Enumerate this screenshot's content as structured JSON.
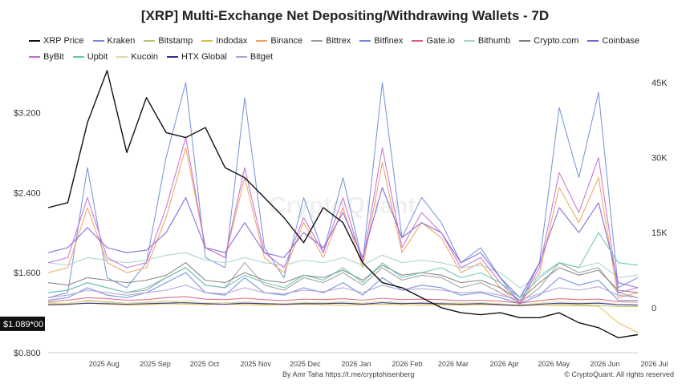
{
  "chart_data": {
    "type": "line",
    "title": "[XRP] Multi-Exchange Net Depositing/Withdrawing Wallets - 7D",
    "x_ticks": [
      "2025 Aug",
      "2025 Sep",
      "2025 Oct",
      "2025 Nov",
      "2025 Dec",
      "2026 Jan",
      "2026 Feb",
      "2026 Mar",
      "2026 Apr",
      "2026 May",
      "2026 Jun",
      "2026 Jul"
    ],
    "x_range": [
      "2025-07-12",
      "2026-07-05"
    ],
    "y_left": {
      "ticks": [
        "$3.200",
        "$2.400",
        "$1.600",
        "$0.800"
      ],
      "range": [
        0.8,
        3.7
      ]
    },
    "y_right": {
      "ticks": [
        "45K",
        "30K",
        "15K",
        "0"
      ],
      "range": [
        -9000,
        49000
      ]
    },
    "current_price_label": "$1.089*00",
    "grid": false,
    "legend_position": "top",
    "series": [
      {
        "name": "XRP Price",
        "color": "#111111",
        "axis": "left",
        "values": [
          2.25,
          2.3,
          3.1,
          3.62,
          2.8,
          3.35,
          3.0,
          2.95,
          3.05,
          2.65,
          2.55,
          2.35,
          2.15,
          1.9,
          2.25,
          2.1,
          1.7,
          1.5,
          1.45,
          1.35,
          1.25,
          1.2,
          1.18,
          1.2,
          1.15,
          1.15,
          1.2,
          1.1,
          1.05,
          0.95,
          0.98
        ]
      },
      {
        "name": "Kraken",
        "color": "#6f8fd6",
        "axis": "right",
        "values": [
          2000,
          3000,
          28000,
          6000,
          4000,
          9000,
          30000,
          45000,
          10000,
          8000,
          42000,
          12000,
          6000,
          22000,
          11000,
          26000,
          9000,
          45000,
          14000,
          22000,
          17000,
          9000,
          12000,
          6000,
          1000,
          9000,
          40000,
          26000,
          43000,
          4000,
          6000
        ]
      },
      {
        "name": "Bitstamp",
        "color": "#b7c46a",
        "axis": "right",
        "values": [
          1000,
          800,
          1500,
          1200,
          900,
          1100,
          1300,
          900,
          800,
          1000,
          900,
          700,
          800,
          900,
          1000,
          900,
          800,
          700,
          900,
          800,
          700,
          800,
          900,
          700,
          600,
          800,
          700,
          600,
          500,
          200,
          200
        ]
      },
      {
        "name": "Indodax",
        "color": "#e7b84a",
        "axis": "right",
        "values": [
          500,
          600,
          900,
          700,
          500,
          600,
          800,
          700,
          600,
          700,
          600,
          500,
          600,
          700,
          600,
          500,
          600,
          700,
          600,
          500,
          600,
          500,
          600,
          500,
          400,
          500,
          400,
          400,
          300,
          -3000,
          -5000
        ]
      },
      {
        "name": "Binance",
        "color": "#f0a05a",
        "axis": "right",
        "values": [
          7000,
          8000,
          20000,
          9000,
          7000,
          8000,
          18000,
          32000,
          12000,
          10000,
          26000,
          10000,
          7000,
          17000,
          10000,
          20000,
          8000,
          29000,
          11000,
          17000,
          14000,
          7000,
          9000,
          4000,
          600,
          7000,
          24000,
          17000,
          26000,
          2000,
          3000
        ]
      },
      {
        "name": "Bittrex",
        "color": "#9a9a9a",
        "axis": "right",
        "values": [
          3000,
          3500,
          5000,
          4000,
          3000,
          3500,
          6000,
          8000,
          4500,
          4000,
          9000,
          4500,
          3500,
          6000,
          5000,
          7000,
          4500,
          8000,
          5500,
          6500,
          6000,
          4000,
          5000,
          3000,
          1000,
          4000,
          9000,
          7000,
          8000,
          3000,
          2000
        ]
      },
      {
        "name": "Bitfinex",
        "color": "#6a8ad8",
        "axis": "right",
        "values": [
          1500,
          2000,
          4000,
          2500,
          2000,
          3000,
          5000,
          7000,
          3000,
          2500,
          6000,
          3000,
          2500,
          4000,
          3000,
          5000,
          2500,
          6000,
          3500,
          4500,
          4000,
          2500,
          3000,
          2000,
          800,
          2500,
          6000,
          4500,
          5500,
          1500,
          1500
        ]
      },
      {
        "name": "Gate.io",
        "color": "#d9607a",
        "axis": "right",
        "values": [
          1200,
          1500,
          2000,
          1800,
          1500,
          1600,
          2000,
          2200,
          1700,
          1600,
          1900,
          1600,
          1400,
          1700,
          1600,
          1800,
          1500,
          1900,
          1600,
          1700,
          1600,
          1400,
          1500,
          1300,
          900,
          1400,
          1800,
          1600,
          1700,
          1200,
          1100
        ]
      },
      {
        "name": "Bithumb",
        "color": "#a6d4c8",
        "axis": "right",
        "values": [
          9000,
          8500,
          10000,
          9500,
          9000,
          9500,
          10500,
          11000,
          9500,
          9000,
          10000,
          9000,
          8500,
          9500,
          9000,
          10000,
          8500,
          10500,
          9000,
          9500,
          9000,
          8000,
          8500,
          7000,
          4000,
          6500,
          9000,
          8000,
          9000,
          6000,
          6500
        ]
      },
      {
        "name": "Crypto.com",
        "color": "#7d7d7d",
        "axis": "right",
        "values": [
          5000,
          4500,
          6000,
          5500,
          5000,
          5500,
          6500,
          9000,
          5500,
          5000,
          7000,
          5500,
          5000,
          6500,
          6000,
          7500,
          5500,
          8500,
          6500,
          7000,
          6500,
          5000,
          5500,
          4000,
          1500,
          5000,
          8000,
          6500,
          7500,
          3500,
          3000
        ]
      },
      {
        "name": "Coinbase",
        "color": "#7a5fd0",
        "axis": "right",
        "values": [
          11000,
          12000,
          16000,
          12000,
          11000,
          11500,
          15000,
          22000,
          12000,
          11000,
          17000,
          11000,
          10000,
          15000,
          12000,
          19000,
          10000,
          24000,
          14000,
          17000,
          15000,
          9000,
          11000,
          6000,
          2000,
          9000,
          20000,
          15000,
          21000,
          5000,
          4000
        ]
      },
      {
        "name": "ByBit",
        "color": "#c46ad6",
        "axis": "right",
        "values": [
          9000,
          10000,
          22000,
          10000,
          8000,
          9000,
          20000,
          34000,
          12000,
          10000,
          28000,
          11000,
          8000,
          18000,
          11000,
          22000,
          9000,
          32000,
          12000,
          19000,
          15000,
          8000,
          10000,
          5000,
          1000,
          8000,
          27000,
          19000,
          30000,
          3000,
          4000
        ]
      },
      {
        "name": "Upbit",
        "color": "#63c2b5",
        "axis": "right",
        "values": [
          3000,
          3500,
          5000,
          4000,
          3000,
          4000,
          6000,
          8000,
          4500,
          4000,
          6500,
          5000,
          4000,
          6500,
          5500,
          8000,
          5000,
          9000,
          6000,
          7000,
          8000,
          6000,
          7000,
          5000,
          2000,
          6000,
          9000,
          8000,
          15000,
          9000,
          8500
        ]
      },
      {
        "name": "Kucoin",
        "color": "#e3d7a0",
        "axis": "right",
        "values": [
          800,
          900,
          1300,
          1000,
          900,
          1000,
          1200,
          1400,
          1000,
          900,
          1200,
          900,
          800,
          1100,
          1000,
          1200,
          900,
          1300,
          1000,
          1100,
          1000,
          900,
          1000,
          800,
          500,
          900,
          1200,
          1000,
          1100,
          700,
          600
        ]
      },
      {
        "name": "HTX Global",
        "color": "#2c2f8a",
        "axis": "right",
        "values": [
          600,
          700,
          900,
          800,
          700,
          800,
          900,
          1000,
          800,
          700,
          900,
          800,
          700,
          800,
          800,
          900,
          700,
          1000,
          800,
          900,
          800,
          700,
          800,
          600,
          400,
          700,
          900,
          800,
          900,
          600,
          500
        ]
      },
      {
        "name": "Bitget",
        "color": "#b39ad9",
        "axis": "right",
        "values": [
          2000,
          2500,
          3500,
          3000,
          2500,
          3000,
          3500,
          4500,
          3000,
          2800,
          4000,
          3000,
          2800,
          3500,
          3200,
          4000,
          3000,
          4500,
          3500,
          3800,
          3500,
          3000,
          3200,
          2500,
          1500,
          2800,
          4000,
          3500,
          4200,
          2500,
          2000
        ]
      }
    ]
  },
  "footer": {
    "credit_prefix": "By Amr Taha ",
    "credit_link": "https://t.me/cryptohisenberg",
    "copyright": "© CryptoQuant. All rights reserved"
  },
  "watermark": "CryptoQuant"
}
